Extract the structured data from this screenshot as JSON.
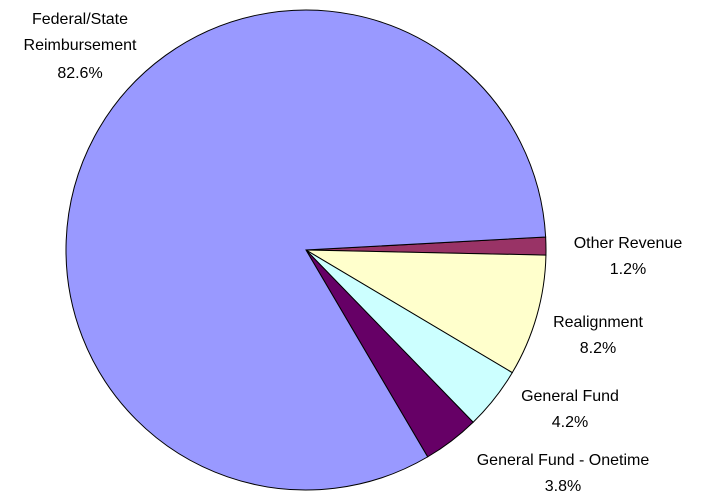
{
  "chart_data": {
    "type": "pie",
    "categories": [
      "Other Revenue",
      "Realignment",
      "General Fund",
      "General Fund - Onetime",
      "Federal/State Reimbursement"
    ],
    "values": [
      1.2,
      8.2,
      4.2,
      3.8,
      82.6
    ],
    "value_labels": [
      "1.2%",
      "8.2%",
      "4.2%",
      "3.8%",
      "82.6%"
    ],
    "colors": [
      "#993366",
      "#ffffcc",
      "#ccffff",
      "#660066",
      "#9999ff"
    ]
  }
}
